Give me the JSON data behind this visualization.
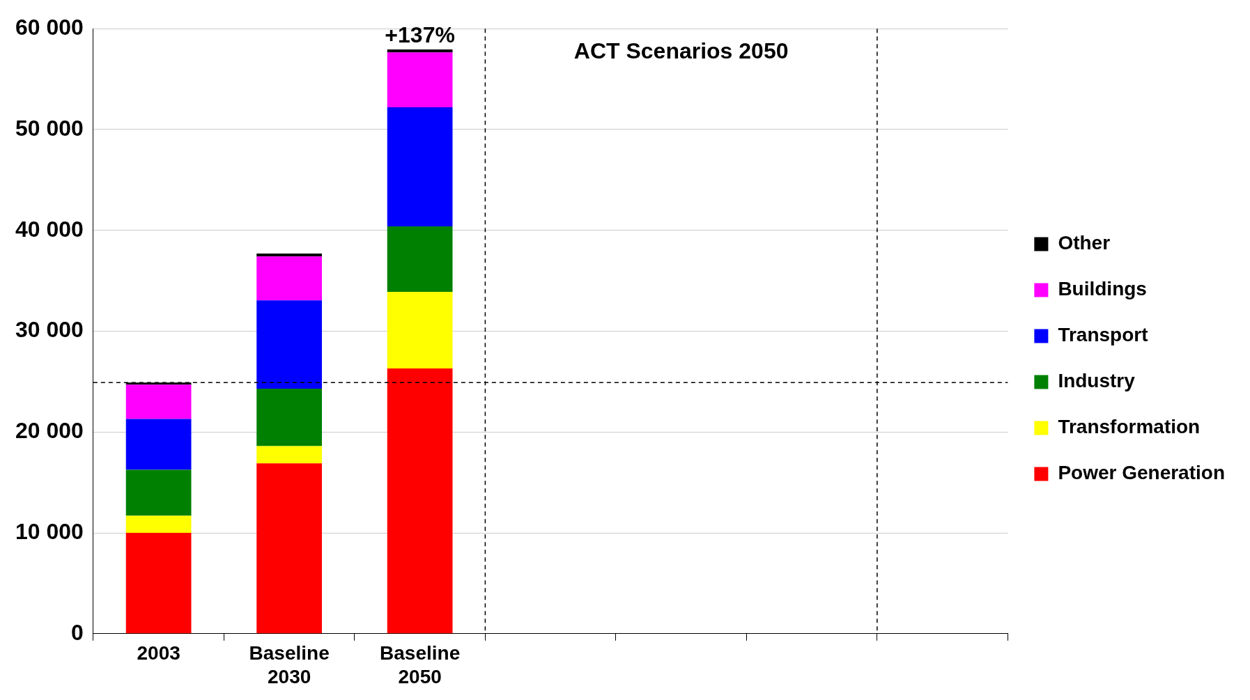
{
  "chart_data": {
    "type": "bar",
    "stacked": true,
    "categories": [
      "2003",
      "Baseline 2030",
      "Baseline 2050",
      null,
      null,
      null,
      null
    ],
    "series": [
      {
        "name": "Power Generation",
        "color": "#ff0000",
        "values": [
          10000,
          16900,
          26300,
          null,
          null,
          null,
          null
        ]
      },
      {
        "name": "Transformation",
        "color": "#ffff00",
        "values": [
          1700,
          1700,
          7600,
          null,
          null,
          null,
          null
        ]
      },
      {
        "name": "Industry",
        "color": "#008000",
        "values": [
          4550,
          5700,
          6500,
          null,
          null,
          null,
          null
        ]
      },
      {
        "name": "Transport",
        "color": "#0000ff",
        "values": [
          5050,
          8750,
          11800,
          null,
          null,
          null,
          null
        ]
      },
      {
        "name": "Buildings",
        "color": "#ff00ff",
        "values": [
          3400,
          4350,
          5450,
          null,
          null,
          null,
          null
        ]
      },
      {
        "name": "Other",
        "color": "#000000",
        "values": [
          200,
          300,
          300,
          null,
          null,
          null,
          null
        ]
      }
    ],
    "ylim": [
      0,
      60000
    ],
    "yticks": [
      {
        "value": 0,
        "label": "0"
      },
      {
        "value": 10000,
        "label": "10 000"
      },
      {
        "value": 20000,
        "label": "20 000"
      },
      {
        "value": 30000,
        "label": "30 000"
      },
      {
        "value": 40000,
        "label": "40 000"
      },
      {
        "value": 50000,
        "label": "50 000"
      },
      {
        "value": 60000,
        "label": "60 000"
      }
    ],
    "grid": "y",
    "legend": "right",
    "ref_lines": [
      {
        "axis": "y",
        "value": 24900,
        "line_style": "dashed",
        "color": "#000000"
      }
    ],
    "annotations": [
      {
        "text": "+137%",
        "x": "Baseline 2050",
        "y": 58000
      },
      "ACT Scenarios 2050"
    ]
  }
}
